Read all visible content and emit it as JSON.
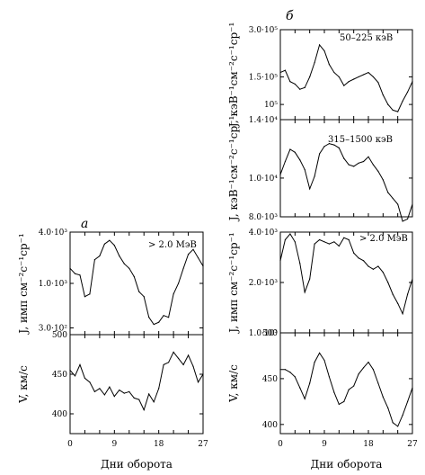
{
  "chart_data": [
    {
      "id": "a_top",
      "panel_letter": "а",
      "type": "line",
      "scale": "log",
      "ylabel": "J, имп см⁻²с⁻¹ср⁻¹",
      "ylim": [
        250,
        4000
      ],
      "ytick_labels": [
        {
          "value": 4000,
          "text": "4.0·10³"
        },
        {
          "value": 1000,
          "text": "1.0·10³"
        },
        {
          "value": 300,
          "text": "3.0·10²"
        }
      ],
      "series_label": "> 2.0 МэВ",
      "x": [
        0,
        1,
        2,
        3,
        4,
        5,
        6,
        7,
        8,
        9,
        10,
        11,
        12,
        13,
        14,
        15,
        16,
        17,
        18,
        19,
        20,
        21,
        22,
        23,
        24,
        25,
        26,
        27
      ],
      "values": [
        1500,
        1300,
        1250,
        700,
        750,
        1900,
        2100,
        2900,
        3200,
        2800,
        2100,
        1700,
        1500,
        1200,
        800,
        700,
        400,
        330,
        350,
        420,
        400,
        750,
        1000,
        1500,
        2200,
        2500,
        2000,
        1600
      ]
    },
    {
      "id": "a_bottom",
      "type": "line",
      "scale": "linear",
      "ylabel": "V, км/с",
      "ylim": [
        375,
        500
      ],
      "ytick_labels": [
        {
          "value": 500,
          "text": "500"
        },
        {
          "value": 450,
          "text": "450"
        },
        {
          "value": 400,
          "text": "400"
        }
      ],
      "xlabel": "Дни оборота",
      "xticks": [
        0,
        9,
        18,
        27
      ],
      "x": [
        0,
        1,
        2,
        3,
        4,
        5,
        6,
        7,
        8,
        9,
        10,
        11,
        12,
        13,
        14,
        15,
        16,
        17,
        18,
        19,
        20,
        21,
        22,
        23,
        24,
        25,
        26,
        27
      ],
      "values": [
        455,
        448,
        462,
        445,
        440,
        428,
        432,
        424,
        434,
        422,
        430,
        426,
        428,
        420,
        418,
        405,
        425,
        415,
        432,
        462,
        465,
        478,
        470,
        462,
        474,
        460,
        440,
        450
      ]
    },
    {
      "id": "b_top",
      "panel_letter": "б",
      "type": "line",
      "scale": "log",
      "ylabel": "J, кэВ⁻¹см⁻²с⁻¹ср⁻¹",
      "ylim": [
        80000,
        300000
      ],
      "ytick_labels": [
        {
          "value": 300000,
          "text": "3.0·10⁵"
        },
        {
          "value": 150000,
          "text": "1.5·10⁵"
        },
        {
          "value": 100000,
          "text": "10⁵"
        }
      ],
      "series_label": "50–225 кэВ",
      "x": [
        0,
        1,
        2,
        3,
        4,
        5,
        6,
        7,
        8,
        9,
        10,
        11,
        12,
        13,
        14,
        15,
        16,
        17,
        18,
        19,
        20,
        21,
        22,
        23,
        24,
        25,
        26,
        27
      ],
      "values": [
        160000,
        165000,
        140000,
        135000,
        125000,
        128000,
        150000,
        185000,
        240000,
        220000,
        180000,
        160000,
        150000,
        132000,
        140000,
        145000,
        150000,
        155000,
        160000,
        150000,
        138000,
        115000,
        100000,
        92000,
        90000,
        105000,
        120000,
        140000
      ]
    },
    {
      "id": "b_mid",
      "type": "line",
      "scale": "log",
      "ylabel": "J, кэВ⁻¹см⁻²с⁻¹ср⁻¹",
      "ylim": [
        8000,
        14000
      ],
      "ytick_labels": [
        {
          "value": 14000,
          "text": "1.4·10⁴"
        },
        {
          "value": 10000,
          "text": "1.0·10⁴"
        },
        {
          "value": 8000,
          "text": "8.0·10³"
        }
      ],
      "series_label": "315–1500 кэВ",
      "x": [
        0,
        1,
        2,
        3,
        4,
        5,
        6,
        7,
        8,
        9,
        10,
        11,
        12,
        13,
        14,
        15,
        16,
        17,
        18,
        19,
        20,
        21,
        22,
        23,
        24,
        25,
        26,
        27
      ],
      "values": [
        10200,
        11000,
        11800,
        11600,
        11100,
        10500,
        9400,
        10100,
        11500,
        12000,
        12200,
        12100,
        11900,
        11200,
        10800,
        10700,
        10900,
        11000,
        11300,
        10800,
        10400,
        9900,
        9200,
        8900,
        8600,
        7800,
        7900,
        8600
      ]
    },
    {
      "id": "b_low",
      "type": "line",
      "scale": "log",
      "ylabel": "J, имп см⁻²с⁻¹ср⁻¹",
      "ylim": [
        1000,
        4000
      ],
      "ytick_labels": [
        {
          "value": 4000,
          "text": "4.0·10³"
        },
        {
          "value": 2000,
          "text": "2.0·10³"
        },
        {
          "value": 1000,
          "text": "1.0·10³"
        }
      ],
      "series_label": "> 2.0 МэВ",
      "x": [
        0,
        1,
        2,
        3,
        4,
        5,
        6,
        7,
        8,
        9,
        10,
        11,
        12,
        13,
        14,
        15,
        16,
        17,
        18,
        19,
        20,
        21,
        22,
        23,
        24,
        25,
        26,
        27
      ],
      "values": [
        2700,
        3600,
        3900,
        3500,
        2600,
        1750,
        2100,
        3400,
        3600,
        3500,
        3400,
        3500,
        3300,
        3700,
        3600,
        3000,
        2800,
        2700,
        2500,
        2400,
        2500,
        2300,
        2000,
        1700,
        1500,
        1300,
        1700,
        2100
      ]
    },
    {
      "id": "b_bottom",
      "type": "line",
      "scale": "linear",
      "ylabel": "V, км/с",
      "ylim": [
        390,
        500
      ],
      "ytick_labels": [
        {
          "value": 500,
          "text": "500"
        },
        {
          "value": 450,
          "text": "450"
        },
        {
          "value": 400,
          "text": "400"
        }
      ],
      "xlabel": "Дни оборота",
      "xticks": [
        0,
        9,
        18,
        27
      ],
      "x": [
        0,
        1,
        2,
        3,
        4,
        5,
        6,
        7,
        8,
        9,
        10,
        11,
        12,
        13,
        14,
        15,
        16,
        17,
        18,
        19,
        20,
        21,
        22,
        23,
        24,
        25,
        26,
        27
      ],
      "values": [
        460,
        460,
        457,
        452,
        440,
        428,
        445,
        468,
        478,
        470,
        452,
        435,
        422,
        425,
        438,
        442,
        455,
        462,
        468,
        460,
        445,
        430,
        418,
        402,
        398,
        410,
        425,
        440
      ]
    }
  ]
}
